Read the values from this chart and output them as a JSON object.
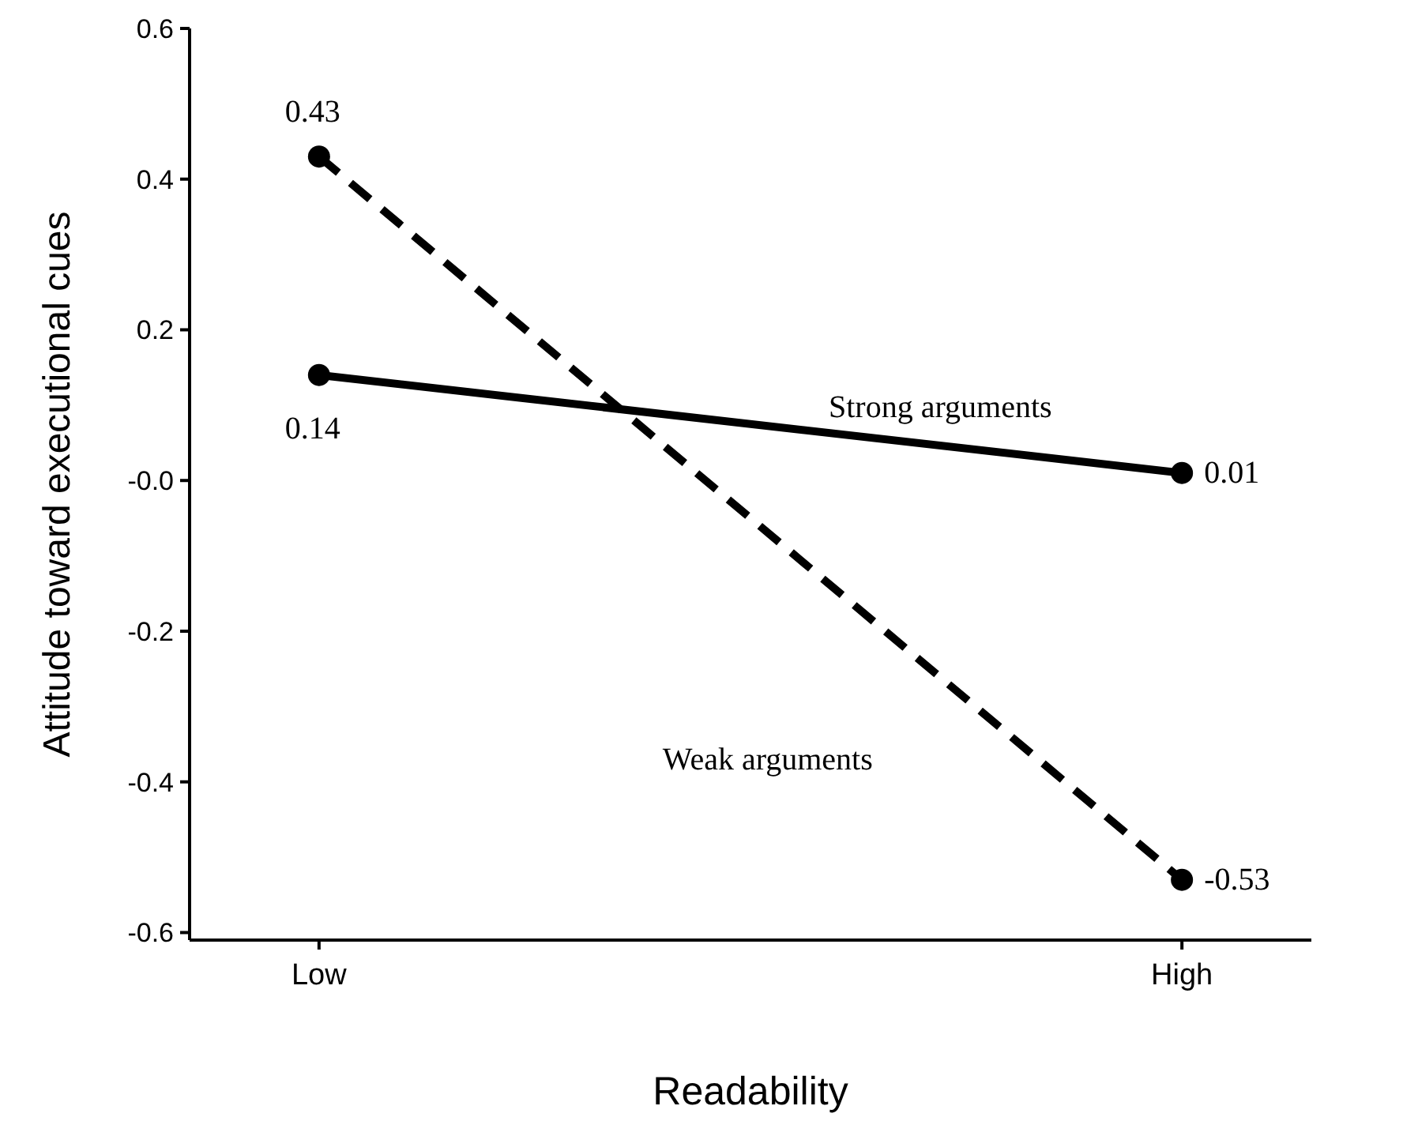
{
  "chart_data": {
    "type": "line",
    "xlabel": "Readability",
    "ylabel": "Attitude toward executional cues",
    "categories": [
      "Low",
      "High"
    ],
    "series": [
      {
        "name": "Strong arguments",
        "color": "#000000",
        "line_style": "solid",
        "values": [
          0.14,
          0.01
        ]
      },
      {
        "name": "Weak arguments",
        "color": "#000000",
        "line_style": "dashed",
        "values": [
          0.43,
          -0.53
        ]
      }
    ],
    "ylim": [
      -0.61,
      0.6
    ],
    "yticks": [
      0.6,
      0.4,
      0.2,
      {
        "value": 0,
        "label": "-0.0"
      },
      -0.2,
      -0.4,
      -0.6
    ],
    "marker": "circle",
    "data_labels": true
  }
}
